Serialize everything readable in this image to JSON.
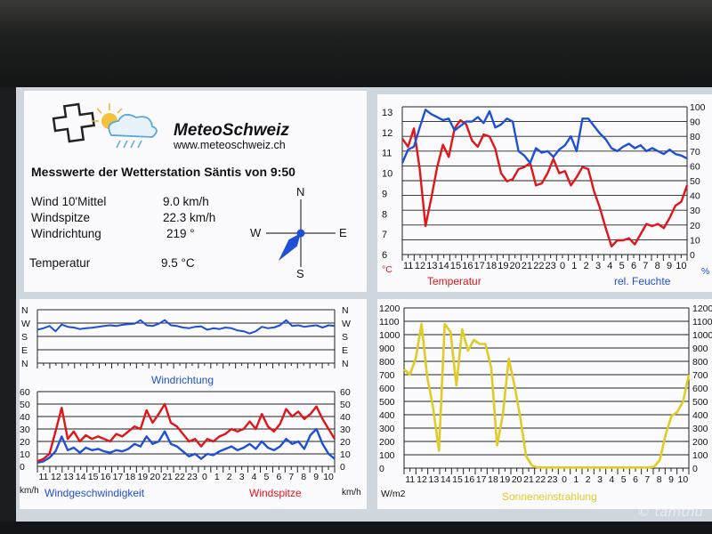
{
  "header": {
    "brand": "MeteoSchweiz",
    "url": "www.meteoschweiz.ch",
    "station_title": "Messwerte der Wetterstation Säntis von 9:50"
  },
  "measurements": [
    {
      "label": "Wind 10'Mittel",
      "value": "9.0 km/h"
    },
    {
      "label": "Windspitze",
      "value": "22.3 km/h"
    },
    {
      "label": "Windrichtung",
      "value": "219 °"
    },
    {
      "label": "Temperatur",
      "value": "9.5 °C"
    }
  ],
  "compass": {
    "north": "N",
    "south": "S",
    "east": "E",
    "west": "W",
    "direction_deg": 219
  },
  "hours": [
    "11",
    "12",
    "13",
    "14",
    "15",
    "16",
    "17",
    "18",
    "19",
    "20",
    "21",
    "22",
    "23",
    "0",
    "1",
    "2",
    "3",
    "4",
    "5",
    "6",
    "7",
    "8",
    "9",
    "10"
  ],
  "colors": {
    "red": "#e0151a",
    "blue": "#1f4fd6",
    "yellow": "#e0cc26",
    "grid": "#222222"
  },
  "watermark": "© tamthu",
  "chart_data": [
    {
      "id": "temperature_humidity",
      "type": "line",
      "y_left": {
        "unit": "°C",
        "ticks": [
          "6",
          "7",
          "8",
          "9",
          "10",
          "11",
          "12",
          "13"
        ],
        "ylim": [
          6,
          13
        ]
      },
      "y_right": {
        "unit": "%",
        "ticks": [
          "0",
          "10",
          "20",
          "30",
          "40",
          "50",
          "60",
          "70",
          "80",
          "90",
          "100"
        ],
        "ylim": [
          0,
          100
        ]
      },
      "x_unit": "h",
      "series": [
        {
          "name": "Temperatur",
          "axis": "left",
          "color": "red",
          "values": [
            11.7,
            11.3,
            12.2,
            10.2,
            7.4,
            8.8,
            10.3,
            11.4,
            10.8,
            12.2,
            12.6,
            12.4,
            11.6,
            11.3,
            11.9,
            11.8,
            11.2,
            10.0,
            9.6,
            9.7,
            10.2,
            10.3,
            10.5,
            9.4,
            9.5,
            10.0,
            10.7,
            10.0,
            10.1,
            9.4,
            9.8,
            10.3,
            10.2,
            9.1,
            8.3,
            7.3,
            6.4,
            6.7,
            6.7,
            6.8,
            6.5,
            7.0,
            7.5,
            7.4,
            7.5,
            7.3,
            7.8,
            8.4,
            8.6,
            9.4
          ]
        },
        {
          "name": "rel. Feuchte",
          "axis": "right",
          "color": "blue",
          "values": [
            62,
            71,
            73,
            86,
            98,
            95,
            93,
            91,
            92,
            84,
            87,
            90,
            90,
            93,
            89,
            97,
            86,
            88,
            92,
            90,
            70,
            67,
            62,
            72,
            69,
            70,
            66,
            71,
            74,
            80,
            70,
            92,
            92,
            87,
            82,
            78,
            72,
            70,
            73,
            75,
            72,
            74,
            70,
            72,
            70,
            68,
            71,
            68,
            67,
            65
          ]
        }
      ]
    },
    {
      "id": "wind_direction",
      "type": "line",
      "y_left": {
        "ticks": [
          "N",
          "W",
          "S",
          "E",
          "N"
        ]
      },
      "y_right": {
        "ticks": [
          "N",
          "W",
          "S",
          "E",
          "N"
        ]
      },
      "series": [
        {
          "name": "Windrichtung",
          "color": "blue",
          "values": [
            225,
            235,
            250,
            215,
            260,
            245,
            240,
            230,
            235,
            238,
            245,
            250,
            255,
            250,
            258,
            262,
            265,
            290,
            255,
            250,
            265,
            290,
            255,
            250,
            240,
            235,
            245,
            248,
            225,
            235,
            230,
            240,
            235,
            220,
            215,
            200,
            215,
            245,
            235,
            240,
            255,
            290,
            250,
            255,
            245,
            250,
            255,
            240,
            255,
            250
          ]
        }
      ]
    },
    {
      "id": "wind_speed",
      "type": "line",
      "y_left": {
        "unit": "km/h",
        "ticks": [
          "0",
          "10",
          "20",
          "30",
          "40",
          "50",
          "60"
        ],
        "ylim": [
          0,
          60
        ]
      },
      "y_right": {
        "unit": "km/h",
        "ticks": [
          "0",
          "10",
          "20",
          "30",
          "40",
          "50",
          "60"
        ],
        "ylim": [
          0,
          60
        ]
      },
      "series": [
        {
          "name": "Windgeschwindigkeit",
          "color": "blue",
          "values": [
            3,
            4,
            7,
            12,
            24,
            13,
            15,
            11,
            15,
            13,
            14,
            12,
            11,
            13,
            12,
            14,
            18,
            16,
            24,
            18,
            20,
            28,
            18,
            16,
            12,
            8,
            10,
            6,
            10,
            9,
            12,
            14,
            16,
            13,
            15,
            18,
            14,
            20,
            15,
            13,
            16,
            22,
            18,
            20,
            14,
            25,
            30,
            18,
            10,
            6
          ]
        },
        {
          "name": "Windspitze",
          "color": "red",
          "values": [
            4,
            6,
            10,
            28,
            47,
            22,
            28,
            20,
            25,
            22,
            24,
            22,
            20,
            26,
            24,
            28,
            32,
            30,
            45,
            35,
            42,
            50,
            35,
            32,
            26,
            20,
            22,
            16,
            22,
            20,
            24,
            26,
            30,
            28,
            30,
            36,
            30,
            42,
            32,
            28,
            34,
            46,
            40,
            44,
            38,
            42,
            48,
            38,
            30,
            22
          ]
        }
      ]
    },
    {
      "id": "solar_radiation",
      "type": "line",
      "y_left": {
        "unit": "W/m2",
        "ticks": [
          "0",
          "100",
          "200",
          "300",
          "400",
          "500",
          "600",
          "700",
          "800",
          "900",
          "1000",
          "1100",
          "1200"
        ],
        "ylim": [
          0,
          1200
        ]
      },
      "y_right": {
        "ticks": [
          "0",
          "100",
          "200",
          "300",
          "400",
          "500",
          "600",
          "700",
          "800",
          "900",
          "1000",
          "1100",
          "1200"
        ],
        "ylim": [
          0,
          1200
        ]
      },
      "series": [
        {
          "name": "Sonneneinstrahlung",
          "color": "yellow",
          "values": [
            740,
            700,
            820,
            1080,
            680,
            450,
            130,
            1080,
            1020,
            620,
            1040,
            880,
            960,
            930,
            930,
            750,
            170,
            400,
            820,
            620,
            380,
            90,
            20,
            5,
            5,
            5,
            5,
            5,
            5,
            5,
            5,
            5,
            5,
            5,
            5,
            5,
            5,
            5,
            5,
            5,
            5,
            5,
            5,
            10,
            60,
            250,
            390,
            420,
            500,
            700
          ]
        }
      ]
    }
  ]
}
